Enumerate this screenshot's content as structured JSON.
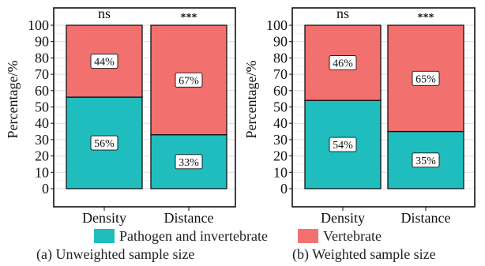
{
  "colors": {
    "pathogen": "#20BDBE",
    "vertebrate": "#F2706E"
  },
  "legend": [
    {
      "name": "Pathogen and invertebrate",
      "color": "#20BDBE"
    },
    {
      "name": "Vertebrate",
      "color": "#F2706E"
    }
  ],
  "chart_data": [
    {
      "type": "bar",
      "stacked": true,
      "caption": "(a) Unweighted sample size",
      "ylabel": "Percentage/%",
      "ylim": [
        0,
        100
      ],
      "yticks": [
        "0",
        "10",
        "20",
        "30",
        "40",
        "50",
        "60",
        "70",
        "80",
        "90",
        "100"
      ],
      "grid": true,
      "categories": [
        "Density",
        "Distance"
      ],
      "significance": [
        "ns",
        "***"
      ],
      "series": [
        {
          "name": "Pathogen and invertebrate",
          "values": [
            56,
            33
          ],
          "labels": [
            "56%",
            "33%"
          ]
        },
        {
          "name": "Vertebrate",
          "values": [
            44,
            67
          ],
          "labels": [
            "44%",
            "67%"
          ]
        }
      ]
    },
    {
      "type": "bar",
      "stacked": true,
      "caption": "(b) Weighted sample size",
      "ylabel": "Percentage/%",
      "ylim": [
        0,
        100
      ],
      "yticks": [
        "0",
        "10",
        "20",
        "30",
        "40",
        "50",
        "60",
        "70",
        "80",
        "90",
        "100"
      ],
      "grid": true,
      "categories": [
        "Density",
        "Distance"
      ],
      "significance": [
        "ns",
        "***"
      ],
      "series": [
        {
          "name": "Pathogen and invertebrate",
          "values": [
            54,
            35
          ],
          "labels": [
            "54%",
            "35%"
          ]
        },
        {
          "name": "Vertebrate",
          "values": [
            46,
            65
          ],
          "labels": [
            "46%",
            "65%"
          ]
        }
      ]
    }
  ]
}
